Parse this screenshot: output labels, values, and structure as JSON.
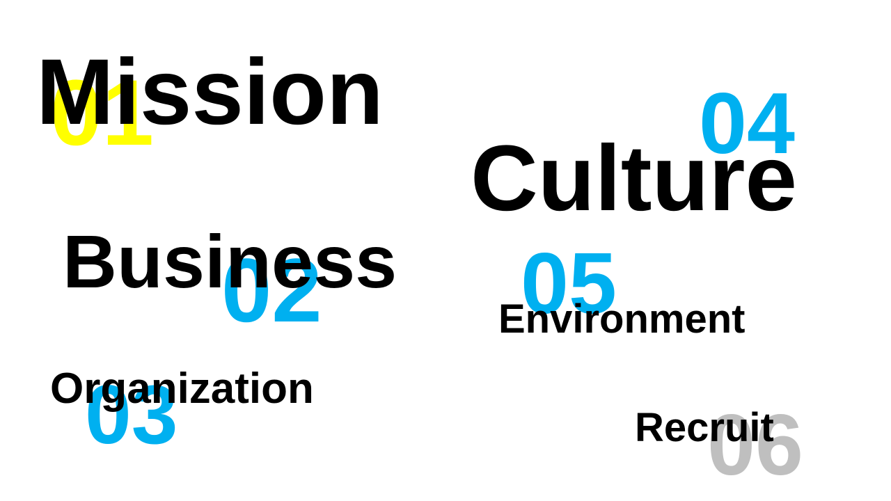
{
  "slide": {
    "items": [
      {
        "number": "01",
        "label": "Mission",
        "number_color": "#FFFF00"
      },
      {
        "number": "02",
        "label": "Business",
        "number_color": "#00B0F0"
      },
      {
        "number": "03",
        "label": "Organization",
        "number_color": "#00B0F0"
      },
      {
        "number": "04",
        "label": "Culture",
        "number_color": "#00B0F0"
      },
      {
        "number": "05",
        "label": "Environment",
        "number_color": "#00B0F0"
      },
      {
        "number": "06",
        "label": "Recruit",
        "number_color": "#BFBFBF"
      }
    ],
    "label_color": "#000000"
  }
}
